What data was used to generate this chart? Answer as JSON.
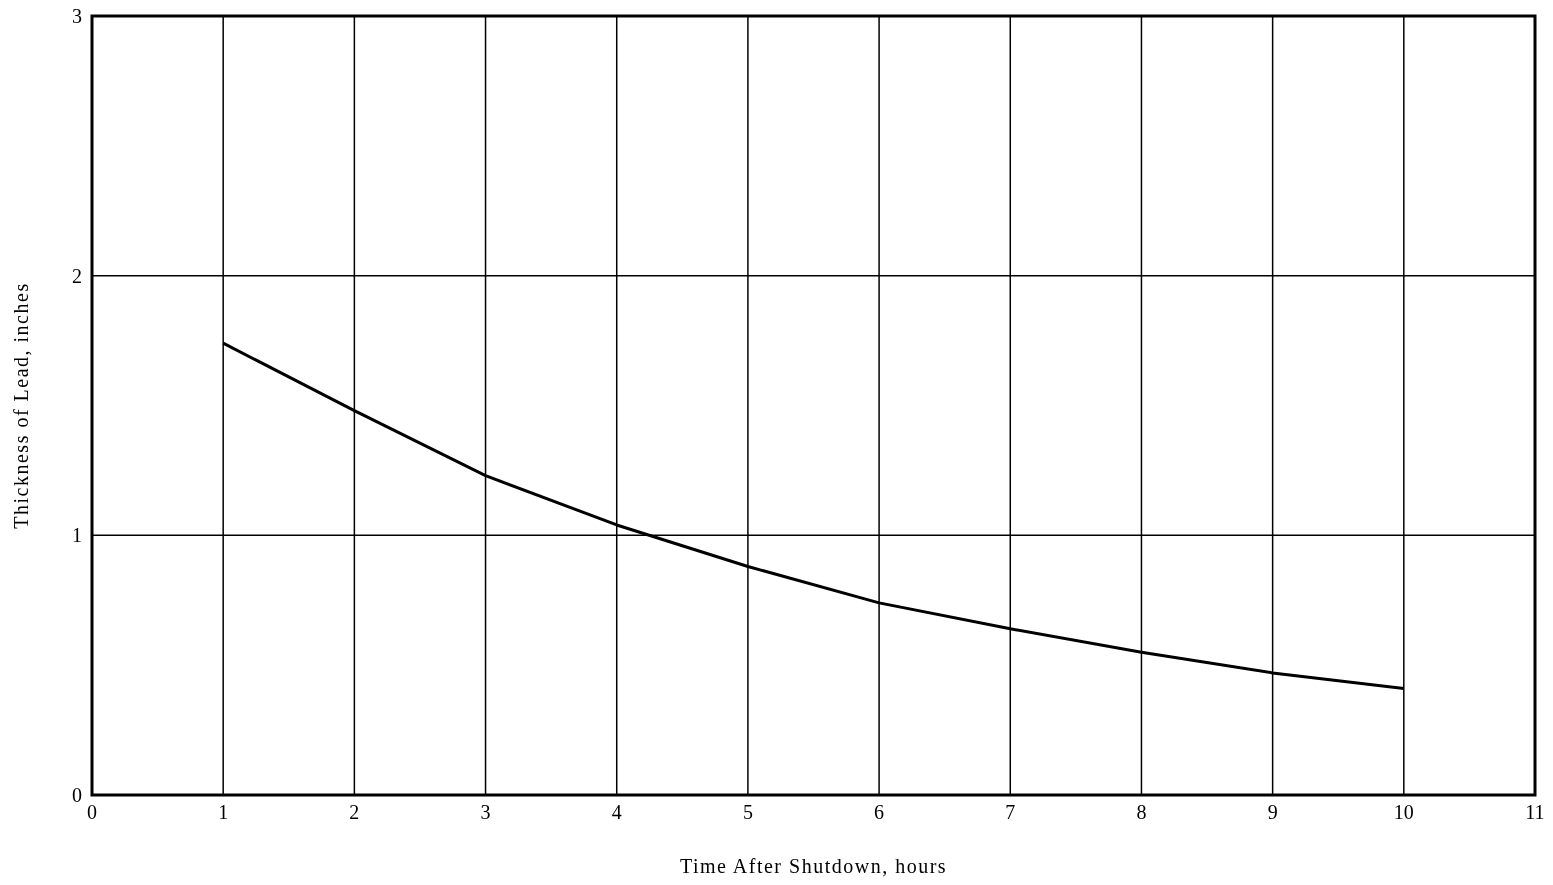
{
  "chart_data": {
    "type": "line",
    "xlabel": "Time After Shutdown, hours",
    "ylabel": "Thickness of Lead, inches",
    "x": [
      1,
      2,
      3,
      4,
      5,
      6,
      7,
      8,
      9,
      10
    ],
    "series": [
      {
        "color": "#000000",
        "values": [
          1.74,
          1.48,
          1.23,
          1.04,
          0.88,
          0.74,
          0.64,
          0.55,
          0.47,
          0.41
        ]
      }
    ],
    "xlim": [
      0,
      11
    ],
    "xticks": [
      0,
      1,
      2,
      3,
      4,
      5,
      6,
      7,
      8,
      9,
      10,
      11
    ],
    "ylim": [
      0,
      3
    ],
    "yticks": [
      0,
      1,
      2,
      3
    ],
    "grid": true,
    "marker": "none",
    "line_style": "solid"
  }
}
